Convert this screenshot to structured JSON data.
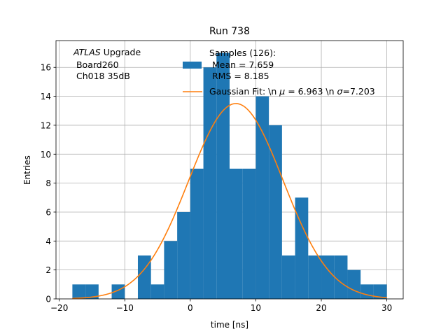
{
  "chart_data": {
    "type": "bar",
    "title": "Run 738",
    "xlabel": "time [ns]",
    "ylabel": "Entries",
    "xlim": [
      -20.5,
      32.5
    ],
    "ylim": [
      0,
      17.85
    ],
    "x_ticks": [
      -20,
      -10,
      0,
      10,
      20,
      30
    ],
    "y_ticks": [
      0,
      2,
      4,
      6,
      8,
      10,
      12,
      14,
      16
    ],
    "grid": true,
    "legend_placement": "top-center",
    "annotation": {
      "prefix_italic": "ATLAS",
      "prefix_rest": " Upgrade",
      "line2": " Board260",
      "line3": " Ch018 35dB"
    },
    "histogram": {
      "color": "#1f77b4",
      "bin_edges": [
        -18,
        -16,
        -14,
        -12,
        -10,
        -8,
        -6,
        -4,
        -2,
        0,
        2,
        4,
        6,
        8,
        10,
        12,
        14,
        16,
        18,
        20,
        22,
        24,
        26,
        28,
        30
      ],
      "counts": [
        1,
        1,
        0,
        1,
        0,
        3,
        1,
        4,
        6,
        9,
        16,
        17,
        9,
        9,
        14,
        12,
        3,
        7,
        3,
        3,
        3,
        2,
        1,
        1
      ],
      "legend_lines": [
        "Samples (126):",
        " Mean = 7.659",
        " RMS = 8.185"
      ]
    },
    "fit": {
      "color": "#ff7f0e",
      "label": "Gaussian Fit: \\n $\\mu$ = 6.963 \\n $\\sigma$=7.203",
      "label_parts": [
        "Gaussian Fit: \\n ",
        "μ",
        " = 6.963 \\n ",
        "σ",
        "=7.203"
      ],
      "mu": 6.963,
      "sigma": 7.203,
      "amplitude": 13.5,
      "x_range": [
        -18,
        30
      ]
    }
  }
}
